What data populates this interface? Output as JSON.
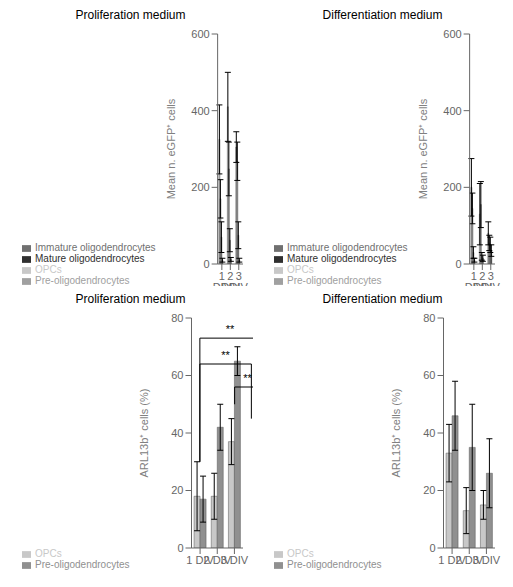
{
  "chart_data": [
    {
      "type": "bar",
      "title": "Proliferation medium",
      "ylabel": "Mean n. eGFP⁺ cells",
      "categories": [
        "1 DIV",
        "2 DIV",
        "3 DIV"
      ],
      "series": [
        {
          "name": "OPCs",
          "color": "#c8c8c8",
          "values": [
            325,
            410,
            305
          ],
          "errors": [
            90,
            90,
            40
          ]
        },
        {
          "name": "Pre-oligodendrocytes",
          "color": "#a0a0a0",
          "values": [
            170,
            248,
            268
          ],
          "errors": [
            50,
            70,
            50
          ]
        },
        {
          "name": "Immature oligodendrocytes",
          "color": "#707070",
          "values": [
            70,
            62,
            75
          ],
          "errors": [
            40,
            30,
            35
          ]
        },
        {
          "name": "Mature oligodendrocytes",
          "color": "#303030",
          "values": [
            10,
            12,
            10
          ],
          "errors": [
            5,
            5,
            5
          ]
        }
      ],
      "ylim": [
        0,
        600
      ],
      "yticks": [
        0,
        200,
        400,
        600
      ],
      "grid": false,
      "legend": "bottom"
    },
    {
      "type": "bar",
      "title": "Differentiation medium",
      "ylabel": "Mean n. eGFP⁺ cells",
      "categories": [
        "1 DIV",
        "2 DIV",
        "3 DIV"
      ],
      "series": [
        {
          "name": "OPCs",
          "color": "#c8c8c8",
          "values": [
            200,
            130,
            80
          ],
          "errors": [
            75,
            80,
            30
          ]
        },
        {
          "name": "Pre-oligodendrocytes",
          "color": "#a0a0a0",
          "values": [
            145,
            155,
            55
          ],
          "errors": [
            40,
            60,
            20
          ]
        },
        {
          "name": "Immature oligodendrocytes",
          "color": "#707070",
          "values": [
            30,
            20,
            50
          ],
          "errors": [
            15,
            10,
            20
          ]
        },
        {
          "name": "Mature oligodendrocytes",
          "color": "#303030",
          "values": [
            10,
            15,
            35
          ],
          "errors": [
            5,
            8,
            15
          ]
        }
      ],
      "ylim": [
        0,
        600
      ],
      "yticks": [
        0,
        200,
        400,
        600
      ],
      "grid": false,
      "legend": "bottom"
    },
    {
      "type": "bar",
      "title": "Proliferation medium",
      "ylabel": "ARL13b⁺ cells (%)",
      "categories": [
        "1 DIV",
        "2 DIV",
        "3 DIV"
      ],
      "series": [
        {
          "name": "OPCs",
          "color": "#c8c8c8",
          "values": [
            18,
            18,
            37
          ],
          "errors": [
            12,
            8,
            8
          ]
        },
        {
          "name": "Pre-oligodendrocytes",
          "color": "#909090",
          "values": [
            17,
            42,
            65
          ],
          "errors": [
            8,
            8,
            5
          ]
        }
      ],
      "ylim": [
        0,
        80
      ],
      "yticks": [
        0,
        20,
        40,
        60,
        80
      ],
      "grid": false,
      "legend": "bottom",
      "annotations": [
        {
          "text": "**",
          "y": 73,
          "from": {
            "category": "1 DIV",
            "series": "OPCs"
          },
          "to": {
            "category": "3 DIV",
            "series": "Pre-oligodendrocytes"
          }
        },
        {
          "text": "**",
          "y": 64,
          "from": {
            "category": "1 DIV",
            "series": "OPCs"
          },
          "to": {
            "category": "3 DIV",
            "series": "OPCs"
          }
        },
        {
          "text": "**",
          "y": 56,
          "from": {
            "category": "2 DIV",
            "series": "Pre-oligodendrocytes"
          },
          "to": {
            "category": "3 DIV",
            "series": "Pre-oligodendrocytes"
          }
        }
      ]
    },
    {
      "type": "bar",
      "title": "Differentiation medium",
      "ylabel": "ARL13b⁺ cells (%)",
      "categories": [
        "1 DIV",
        "2 DIV",
        "3 DIV"
      ],
      "series": [
        {
          "name": "OPCs",
          "color": "#c8c8c8",
          "values": [
            33,
            13,
            15
          ],
          "errors": [
            10,
            8,
            5
          ]
        },
        {
          "name": "Pre-oligodendrocytes",
          "color": "#909090",
          "values": [
            46,
            35,
            26
          ],
          "errors": [
            12,
            15,
            12
          ]
        }
      ],
      "ylim": [
        0,
        80
      ],
      "yticks": [
        0,
        20,
        40,
        60,
        80
      ],
      "grid": false,
      "legend": "bottom"
    }
  ]
}
